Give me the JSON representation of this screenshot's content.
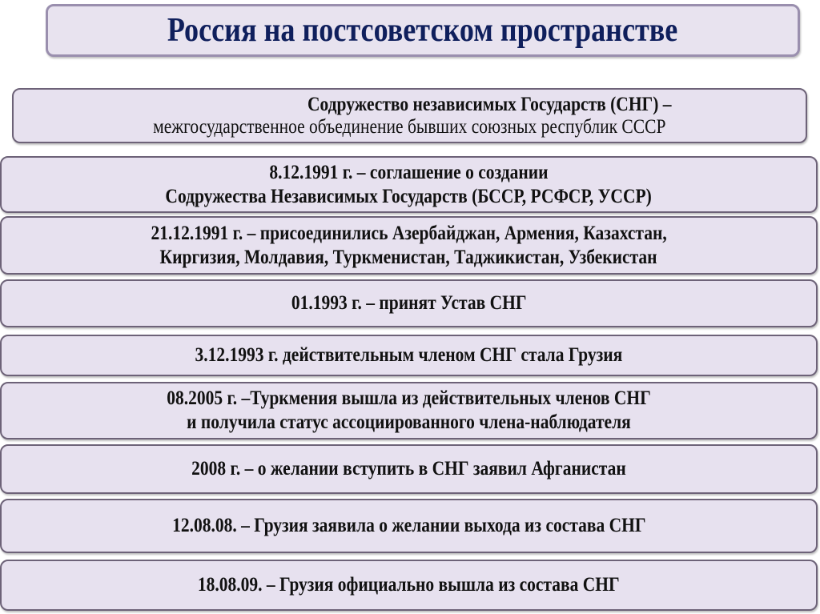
{
  "title": "Россия на постсоветском пространстве",
  "definition": {
    "line1": "Содружество независимых Государств (СНГ) –",
    "line2": "межгосударственное объединение бывших союзных республик СССР"
  },
  "events": [
    {
      "lines": [
        "8.12.1991 г. – соглашение о создании",
        "Содружества Независимых Государств (БССР, РСФСР, УССР)"
      ]
    },
    {
      "lines": [
        "21.12.1991 г. – присоединились Азербайджан, Армения, Казахстан,",
        "Киргизия, Молдавия, Туркменистан, Таджикистан, Узбекистан"
      ]
    },
    {
      "lines": [
        "01.1993 г. – принят Устав СНГ"
      ]
    },
    {
      "lines": [
        "3.12.1993 г. действительным членом СНГ стала Грузия"
      ]
    },
    {
      "lines": [
        "08.2005 г. –Туркмения вышла из действительных членов СНГ",
        "и получила статус ассоциированного члена-наблюдателя"
      ]
    },
    {
      "lines": [
        "2008 г. – о желании вступить в СНГ заявил Афганистан"
      ]
    },
    {
      "lines": [
        "12.08.08. – Грузия заявила о желании выхода из состава СНГ"
      ]
    },
    {
      "lines": [
        "18.08.09. – Грузия официально вышла из состава СНГ"
      ]
    }
  ],
  "colors": {
    "box_fill": "#e7e1ef",
    "box_border": "#6d6278",
    "title_text": "#0f1f5c"
  }
}
